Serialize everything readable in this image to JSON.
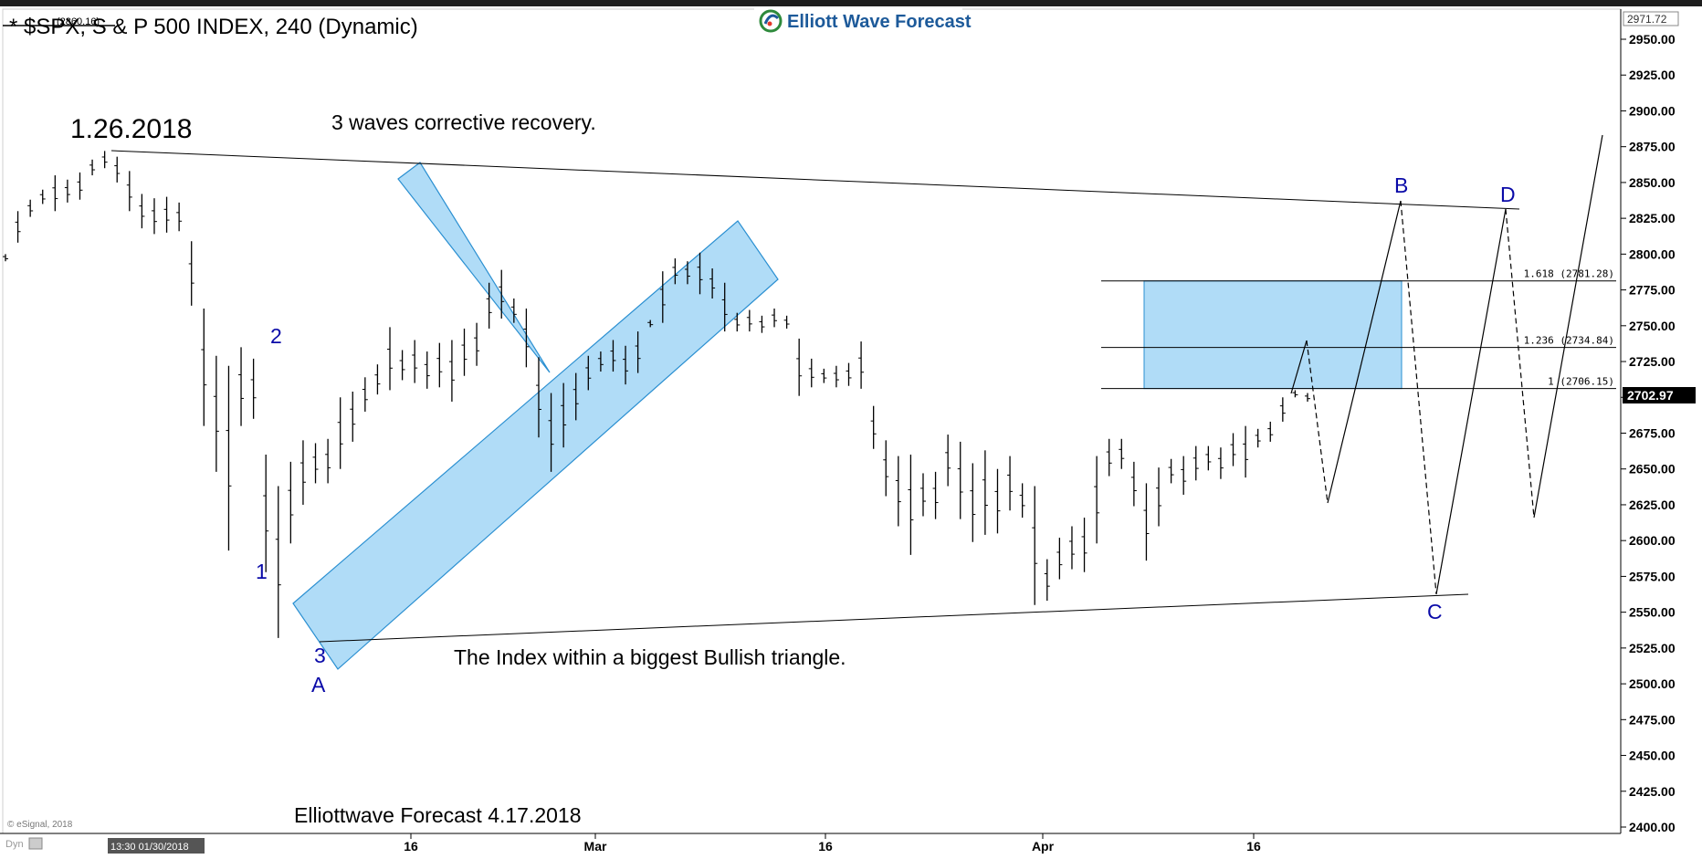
{
  "header": {
    "title": "* $SPX, S & P 500 INDEX, 240 (Dynamic)",
    "title_value": "(2860.16)",
    "logo_text": "Elliott Wave Forecast",
    "top_price_badge": "2971.72"
  },
  "annotations": {
    "date_label": "1.26.2018",
    "corrective_note": "3 waves corrective recovery.",
    "triangle_note": "The Index within a  biggest Bullish triangle.",
    "footer_note": "Elliottwave Forecast 4.17.2018",
    "copyright": "© eSignal, 2018",
    "dyn_label": "Dyn",
    "cursor_datetime": "13:30 01/30/2018"
  },
  "waves": {
    "one": "1",
    "two": "2",
    "three": "3",
    "A": "A",
    "B": "B",
    "C": "C",
    "D": "D"
  },
  "fib_levels": [
    {
      "label": "1.618 (2781.28)",
      "value": 2781.28
    },
    {
      "label": "1.236 (2734.84)",
      "value": 2734.84
    },
    {
      "label": "1 (2706.15)",
      "value": 2706.15
    }
  ],
  "current_price": "2702.97",
  "colors": {
    "channel_fill": "#b0dcf7",
    "channel_stroke": "#2a8fd1",
    "wave_label": "#0a0aa8",
    "price_badge": "#000000"
  },
  "chart_data": {
    "type": "bar",
    "title": "$SPX, S & P 500 INDEX, 240 (Dynamic)",
    "ylim": [
      2400,
      2971.72
    ],
    "y_ticks": [
      "2950.00",
      "2925.00",
      "2900.00",
      "2875.00",
      "2850.00",
      "2825.00",
      "2800.00",
      "2775.00",
      "2750.00",
      "2725.00",
      "2700.00",
      "2675.00",
      "2650.00",
      "2625.00",
      "2600.00",
      "2575.00",
      "2550.00",
      "2525.00",
      "2500.00",
      "2475.00",
      "2450.00",
      "2425.00",
      "2400.00"
    ],
    "x_ticks": [
      "16",
      "Mar",
      "16",
      "Apr",
      "16"
    ],
    "bars": [
      [
        2800,
        2795
      ],
      [
        2830,
        2808
      ],
      [
        2838,
        2826
      ],
      [
        2845,
        2835
      ],
      [
        2855,
        2830
      ],
      [
        2852,
        2836
      ],
      [
        2857,
        2838
      ],
      [
        2866,
        2855
      ],
      [
        2872,
        2860
      ],
      [
        2868,
        2850
      ],
      [
        2858,
        2830
      ],
      [
        2842,
        2818
      ],
      [
        2839,
        2814
      ],
      [
        2840,
        2815
      ],
      [
        2836,
        2816
      ],
      [
        2809,
        2764
      ],
      [
        2762,
        2680
      ],
      [
        2729,
        2648
      ],
      [
        2722,
        2593
      ],
      [
        2735,
        2680
      ],
      [
        2727,
        2685
      ],
      [
        2660,
        2578
      ],
      [
        2638,
        2532
      ],
      [
        2655,
        2598
      ],
      [
        2670,
        2625
      ],
      [
        2668,
        2640
      ],
      [
        2671,
        2640
      ],
      [
        2700,
        2650
      ],
      [
        2704,
        2669
      ],
      [
        2714,
        2690
      ],
      [
        2723,
        2702
      ],
      [
        2749,
        2705
      ],
      [
        2733,
        2712
      ],
      [
        2740,
        2710
      ],
      [
        2732,
        2706
      ],
      [
        2738,
        2707
      ],
      [
        2740,
        2697
      ],
      [
        2748,
        2715
      ],
      [
        2752,
        2722
      ],
      [
        2780,
        2748
      ],
      [
        2789,
        2755
      ],
      [
        2769,
        2752
      ],
      [
        2762,
        2721
      ],
      [
        2728,
        2672
      ],
      [
        2703,
        2648
      ],
      [
        2710,
        2665
      ],
      [
        2717,
        2684
      ],
      [
        2729,
        2705
      ],
      [
        2732,
        2718
      ],
      [
        2740,
        2718
      ],
      [
        2736,
        2709
      ],
      [
        2746,
        2717
      ],
      [
        2754,
        2749
      ],
      [
        2788,
        2752
      ],
      [
        2797,
        2779
      ],
      [
        2795,
        2779
      ],
      [
        2801,
        2772
      ],
      [
        2790,
        2769
      ],
      [
        2780,
        2746
      ],
      [
        2759,
        2746
      ],
      [
        2761,
        2746
      ],
      [
        2757,
        2745
      ],
      [
        2762,
        2749
      ],
      [
        2757,
        2748
      ],
      [
        2741,
        2701
      ],
      [
        2727,
        2707
      ],
      [
        2720,
        2710
      ],
      [
        2722,
        2707
      ],
      [
        2724,
        2708
      ],
      [
        2739,
        2706
      ],
      [
        2694,
        2664
      ],
      [
        2670,
        2631
      ],
      [
        2659,
        2610
      ],
      [
        2660,
        2590
      ],
      [
        2647,
        2617
      ],
      [
        2648,
        2615
      ],
      [
        2674,
        2638
      ],
      [
        2669,
        2615
      ],
      [
        2654,
        2599
      ],
      [
        2663,
        2604
      ],
      [
        2650,
        2605
      ],
      [
        2659,
        2621
      ],
      [
        2640,
        2616
      ],
      [
        2638,
        2555
      ],
      [
        2587,
        2558
      ],
      [
        2602,
        2573
      ],
      [
        2610,
        2580
      ],
      [
        2616,
        2578
      ],
      [
        2659,
        2598
      ],
      [
        2671,
        2645
      ],
      [
        2671,
        2650
      ],
      [
        2655,
        2624
      ],
      [
        2640,
        2586
      ],
      [
        2651,
        2610
      ],
      [
        2657,
        2640
      ],
      [
        2659,
        2632
      ],
      [
        2666,
        2642
      ],
      [
        2666,
        2649
      ],
      [
        2665,
        2643
      ],
      [
        2675,
        2652
      ],
      [
        2680,
        2644
      ],
      [
        2678,
        2665
      ],
      [
        2683,
        2669
      ],
      [
        2700,
        2683
      ],
      [
        2705,
        2700
      ],
      [
        2703,
        2697
      ]
    ],
    "projection_solid": [
      [
        2701,
        2706
      ],
      [
        2736,
        2720
      ]
    ],
    "projection_dashed_path": [
      "2736 → 2627 (dip)",
      "B 2840",
      "C 2565",
      "D 2830",
      "final up to 2882"
    ]
  }
}
